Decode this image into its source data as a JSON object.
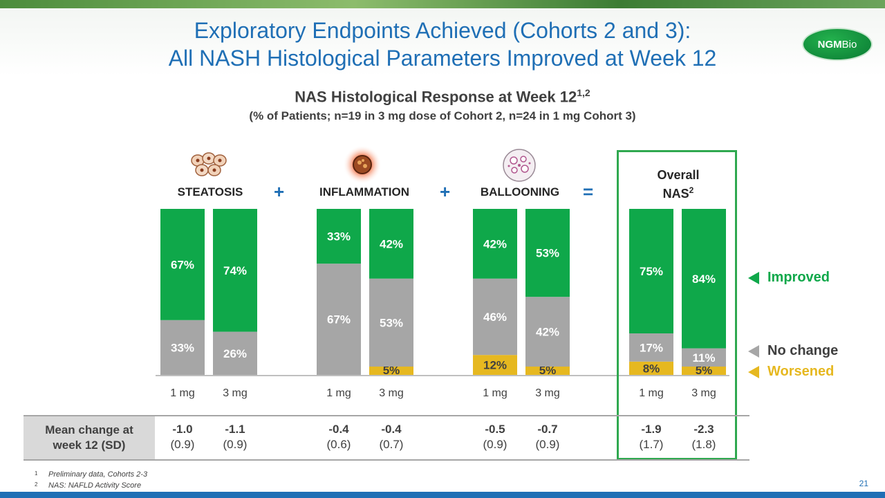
{
  "slide": {
    "title_line1": "Exploratory Endpoints Achieved (Cohorts 2 and 3):",
    "title_line2": "All NASH Histological Parameters Improved at Week 12",
    "logo_main": "NGM",
    "logo_bio": "Bio",
    "page_number": "21"
  },
  "chart_data": {
    "type": "bar",
    "stacked": true,
    "title": "NAS Histological Response at Week 12",
    "title_sup": "1,2",
    "subtitle": "(% of Patients; n=19 in 3 mg dose of Cohort 2, n=24 in 1 mg Cohort 3)",
    "groups": [
      {
        "name": "STEATOSIS",
        "operator_after": "+",
        "icon": "fat-cells-icon"
      },
      {
        "name": "INFLAMMATION",
        "operator_after": "+",
        "icon": "inflamed-cell-icon"
      },
      {
        "name": "BALLOONING",
        "operator_after": "=",
        "icon": "ballooned-tissue-icon"
      },
      {
        "name": "Overall",
        "name_line2": "NAS",
        "name_sup": "2",
        "operator_after": "",
        "icon": ""
      }
    ],
    "categories": [
      "1 mg",
      "3 mg",
      "1 mg",
      "3 mg",
      "1 mg",
      "3 mg",
      "1 mg",
      "3 mg"
    ],
    "series": [
      {
        "name": "Worsened",
        "color": "#e6b820",
        "values": [
          0,
          0,
          0,
          5,
          12,
          5,
          8,
          5
        ],
        "labels": [
          "",
          "",
          "",
          "5%",
          "12%",
          "5%",
          "8%",
          "5%"
        ]
      },
      {
        "name": "No change",
        "color": "#a6a6a6",
        "values": [
          33,
          26,
          67,
          53,
          46,
          42,
          17,
          11
        ],
        "labels": [
          "33%",
          "26%",
          "67%",
          "53%",
          "46%",
          "42%",
          "17%",
          "11%"
        ]
      },
      {
        "name": "Improved",
        "color": "#0fa84a",
        "values": [
          67,
          74,
          33,
          42,
          42,
          53,
          75,
          84
        ],
        "labels": [
          "67%",
          "74%",
          "33%",
          "42%",
          "42%",
          "53%",
          "75%",
          "84%"
        ]
      }
    ],
    "ylim": [
      0,
      100
    ],
    "legend_position": "right"
  },
  "table": {
    "row_header_line1": "Mean change at",
    "row_header_line2": "week 12 (SD)",
    "cells": [
      {
        "mean": "-1.0",
        "sd": "(0.9)"
      },
      {
        "mean": "-1.1",
        "sd": "(0.9)"
      },
      {
        "mean": "-0.4",
        "sd": "(0.6)"
      },
      {
        "mean": "-0.4",
        "sd": "(0.7)"
      },
      {
        "mean": "-0.5",
        "sd": "(0.9)"
      },
      {
        "mean": "-0.7",
        "sd": "(0.9)"
      },
      {
        "mean": "-1.9",
        "sd": "(1.7)"
      },
      {
        "mean": "-2.3",
        "sd": "(1.8)"
      }
    ]
  },
  "footnotes": [
    {
      "num": "1",
      "text": "Preliminary data, Cohorts 2-3"
    },
    {
      "num": "2",
      "text": "NAS:  NAFLD Activity Score"
    }
  ]
}
